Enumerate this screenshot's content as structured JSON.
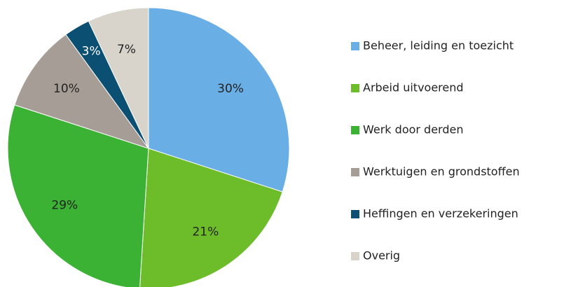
{
  "chart_data": {
    "type": "pie",
    "categories": [
      "Beheer, leiding en toezicht",
      "Arbeid uitvoerend",
      "Werk door derden",
      "Werktuigen en grondstoffen",
      "Heffingen en verzekeringen",
      "Overig"
    ],
    "values": [
      30,
      21,
      29,
      10,
      3,
      7
    ],
    "value_labels": [
      "30%",
      "21%",
      "29%",
      "10%",
      "3%",
      "7%"
    ],
    "colors": [
      "#6aaee6",
      "#6dbd2a",
      "#3bb234",
      "#a69d96",
      "#0b4f73",
      "#d8d4cc"
    ],
    "legend": "right"
  }
}
